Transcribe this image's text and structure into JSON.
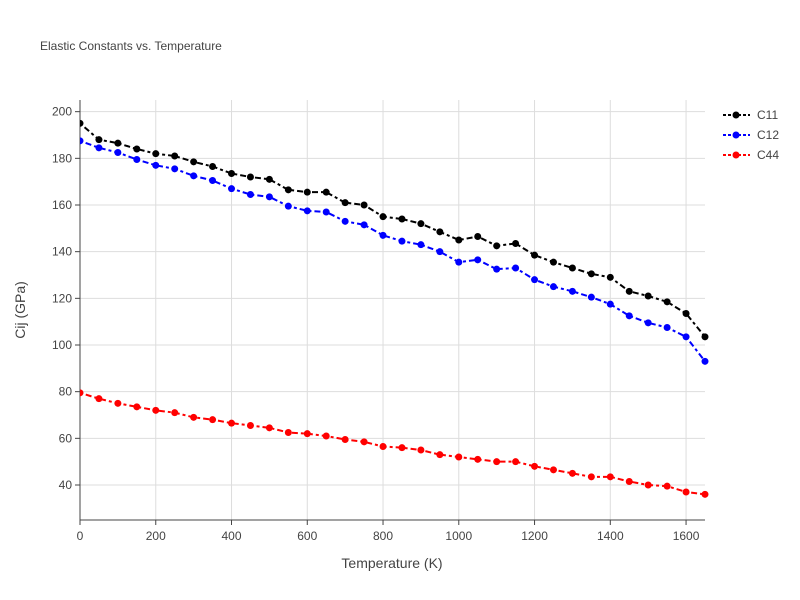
{
  "chart_data": {
    "type": "line",
    "title": "Elastic Constants vs. Temperature",
    "xlabel": "Temperature (K)",
    "ylabel": "Cij (GPa)",
    "xlim": [
      0,
      1650
    ],
    "ylim": [
      25,
      205
    ],
    "xticks": [
      0,
      200,
      400,
      600,
      800,
      1000,
      1200,
      1400,
      1600
    ],
    "yticks": [
      40,
      60,
      80,
      100,
      120,
      140,
      160,
      180,
      200
    ],
    "grid": true,
    "legend_position": "top-right",
    "x": [
      0,
      50,
      100,
      150,
      200,
      250,
      300,
      350,
      400,
      450,
      500,
      550,
      600,
      650,
      700,
      750,
      800,
      850,
      900,
      950,
      1000,
      1050,
      1100,
      1150,
      1200,
      1250,
      1300,
      1350,
      1400,
      1450,
      1500,
      1550,
      1600,
      1650
    ],
    "series": [
      {
        "name": "C11",
        "color": "#000000",
        "values": [
          195,
          188,
          186.5,
          184,
          182,
          181,
          178.5,
          176.5,
          173.5,
          172,
          171,
          166.5,
          165.5,
          165.5,
          161,
          160,
          155,
          154,
          152,
          148.5,
          145,
          146.5,
          142.5,
          143.5,
          138.5,
          135.5,
          133,
          130.5,
          129,
          123,
          121,
          118.5,
          113.5,
          103.5
        ]
      },
      {
        "name": "C12",
        "color": "#0000ff",
        "values": [
          187.5,
          184.5,
          182.5,
          179.5,
          177,
          175.5,
          172.5,
          170.5,
          167,
          164.5,
          163.5,
          159.5,
          157.5,
          157,
          153,
          151.5,
          147,
          144.5,
          143,
          140,
          135.5,
          136.5,
          132.5,
          133,
          128,
          125,
          123,
          120.5,
          117.5,
          112.5,
          109.5,
          107.5,
          103.5,
          93
        ]
      },
      {
        "name": "C44",
        "color": "#ff0000",
        "values": [
          79.5,
          77,
          75,
          73.5,
          72,
          71,
          69,
          68,
          66.5,
          65.5,
          64.5,
          62.5,
          62,
          61,
          59.5,
          58.5,
          56.5,
          56,
          55,
          53,
          52,
          51,
          50,
          50,
          48,
          46.5,
          45,
          43.5,
          43.5,
          41.5,
          40,
          39.5,
          37,
          36
        ]
      }
    ]
  }
}
